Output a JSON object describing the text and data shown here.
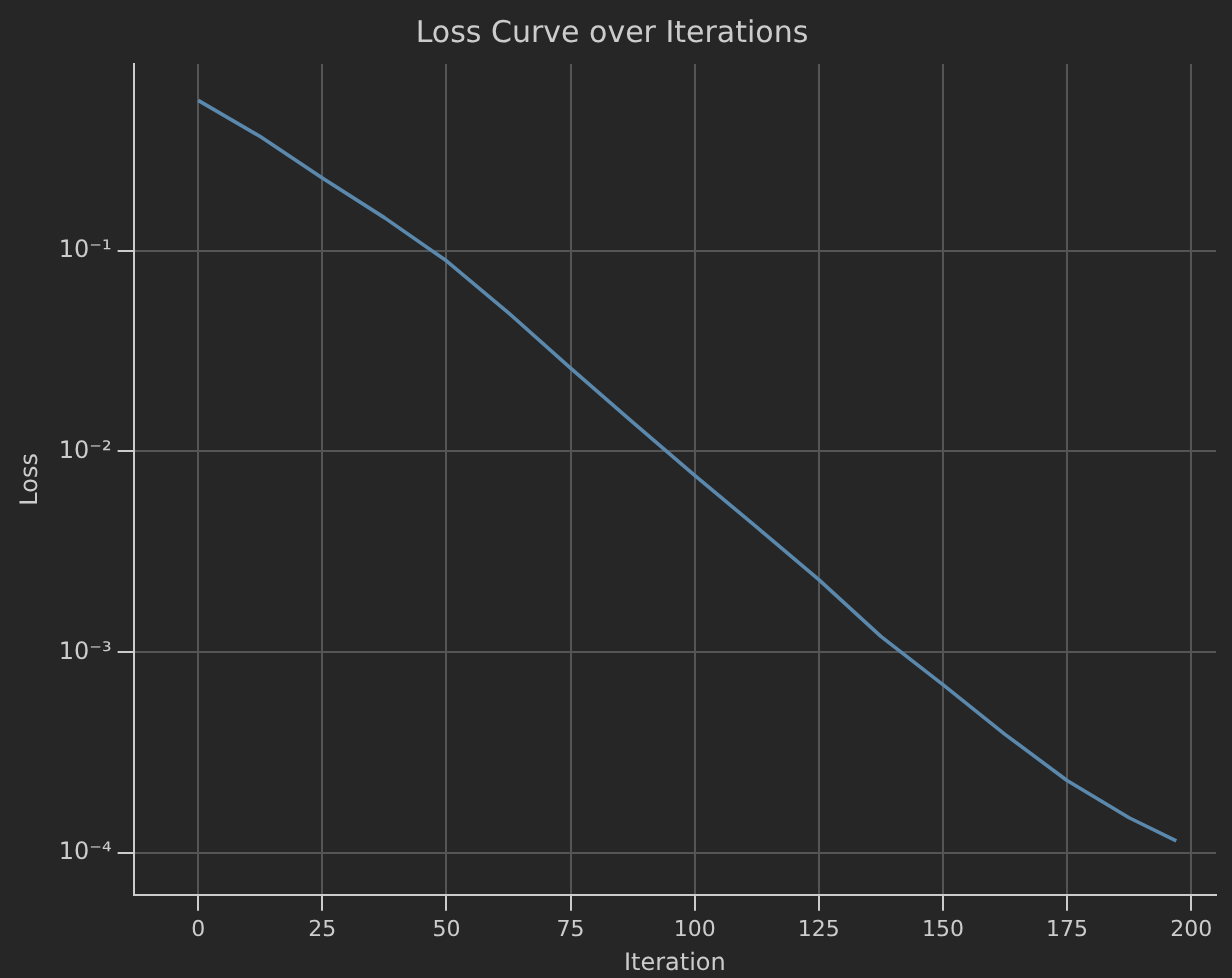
{
  "chart_data": {
    "type": "line",
    "title": "Loss Curve over Iterations",
    "xlabel": "Iteration",
    "ylabel": "Loss",
    "x": [
      0,
      12.5,
      25,
      37.5,
      50,
      62.5,
      75,
      87.5,
      100,
      112.5,
      125,
      137.5,
      150,
      162.5,
      175,
      187.5,
      197
    ],
    "series": [
      {
        "color": "#5b89ad",
        "values": [
          0.56,
          0.37,
          0.23,
          0.146,
          0.089,
          0.049,
          0.026,
          0.014,
          0.0076,
          0.0042,
          0.0023,
          0.0012,
          0.00069,
          0.00039,
          0.00023,
          0.00015,
          0.000115
        ]
      }
    ],
    "log": "y",
    "grid": true,
    "legend": false,
    "marker": "none",
    "line_style": "solid",
    "xlim": [
      -13,
      205
    ],
    "xticks": [
      0,
      25,
      50,
      75,
      100,
      125,
      150,
      175,
      200
    ],
    "ylim": [
      6.2e-05,
      0.85
    ],
    "yticks": [
      {
        "value": 0.0001,
        "label": "10⁻⁴"
      },
      {
        "value": 0.001,
        "label": "10⁻³"
      },
      {
        "value": 0.01,
        "label": "10⁻²"
      },
      {
        "value": 0.1,
        "label": "10⁻¹"
      }
    ]
  }
}
